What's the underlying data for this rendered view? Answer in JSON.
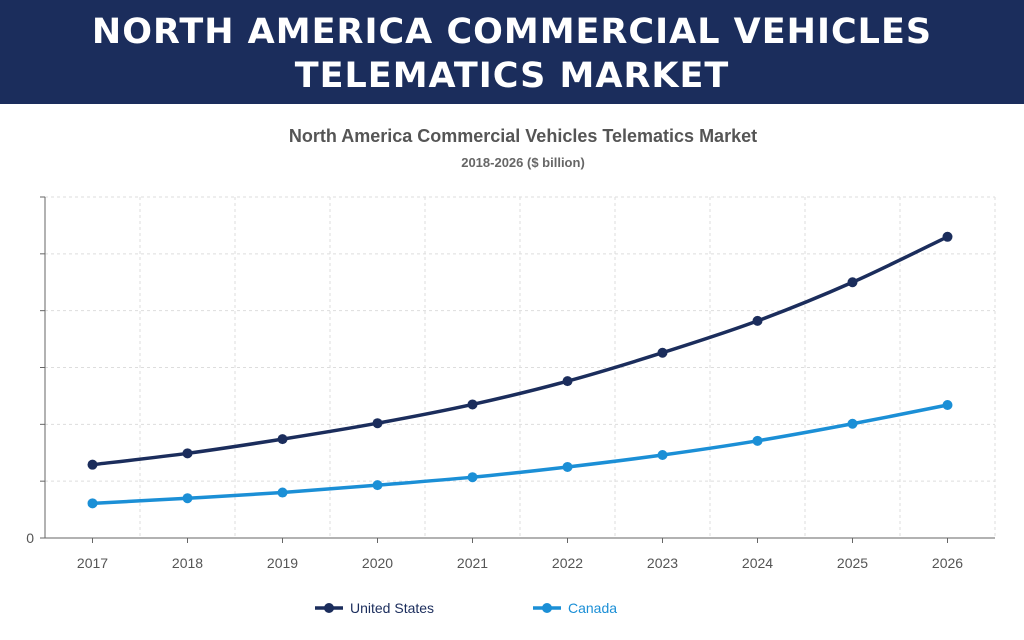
{
  "banner": {
    "line1": "NORTH AMERICA COMMERCIAL VEHICLES",
    "line2": "TELEMATICS MARKET"
  },
  "colors": {
    "banner_bg": "#1b2d5c",
    "us": "#1b2d5c",
    "canada": "#1b8fd6"
  },
  "chart_data": {
    "type": "line",
    "title": "North America Commercial Vehicles Telematics Market",
    "subtitle": "2018-2026 ($ billion)",
    "xlabel": "",
    "ylabel": "",
    "y_tick_label": "0",
    "ylim": [
      0,
      6
    ],
    "grid": true,
    "legend_position": "bottom",
    "categories": [
      "2017",
      "2018",
      "2019",
      "2020",
      "2021",
      "2022",
      "2023",
      "2024",
      "2025",
      "2026"
    ],
    "series": [
      {
        "name": "United States",
        "color": "#1b2d5c",
        "values": [
          1.29,
          1.49,
          1.74,
          2.02,
          2.35,
          2.76,
          3.26,
          3.82,
          4.5,
          5.3
        ]
      },
      {
        "name": "Canada",
        "color": "#1b8fd6",
        "values": [
          0.61,
          0.7,
          0.8,
          0.93,
          1.07,
          1.25,
          1.46,
          1.71,
          2.01,
          2.34
        ]
      }
    ]
  }
}
